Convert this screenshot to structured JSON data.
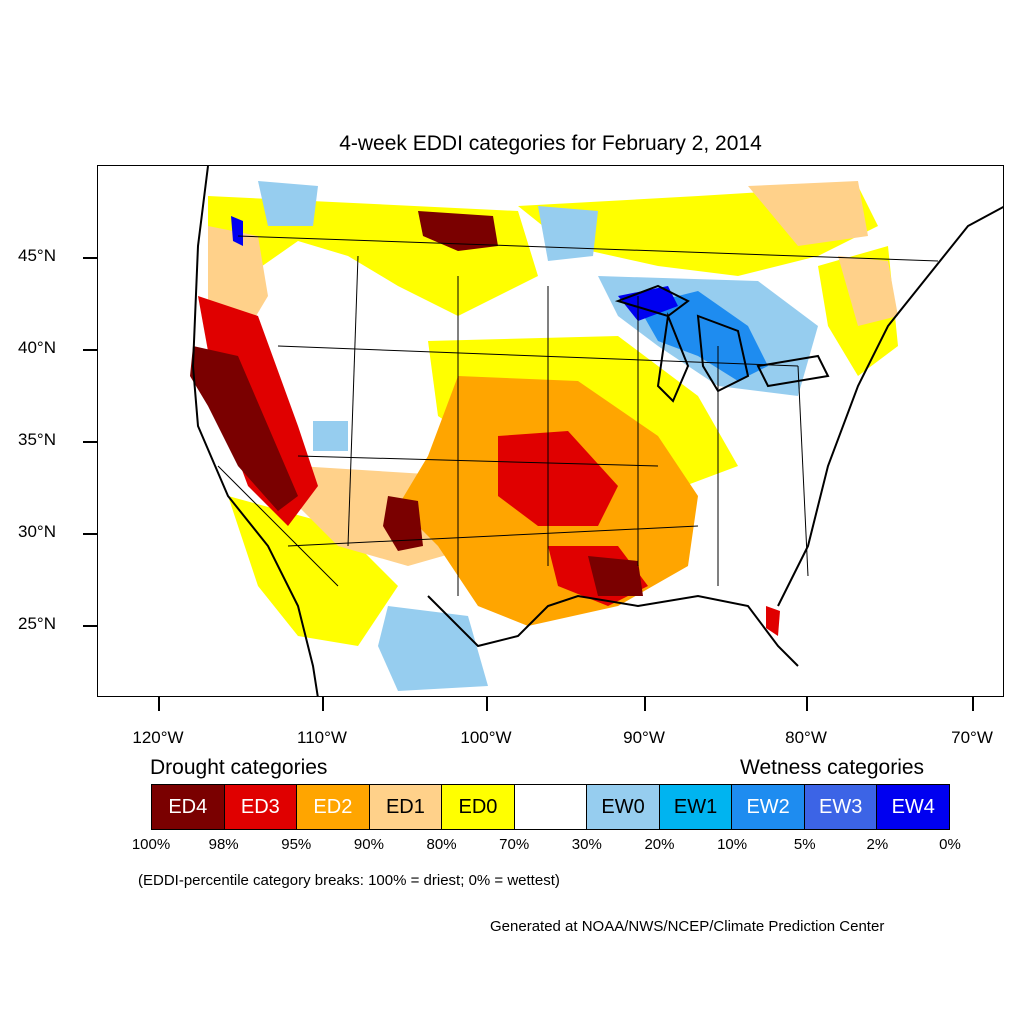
{
  "title": "4-week EDDI categories for February 2, 2014",
  "y_axis": {
    "labels": [
      "45°N",
      "40°N",
      "35°N",
      "30°N",
      "25°N"
    ]
  },
  "x_axis": {
    "labels": [
      "120°W",
      "110°W",
      "100°W",
      "90°W",
      "80°W",
      "70°W"
    ]
  },
  "legend": {
    "drought_title": "Drought categories",
    "wetness_title": "Wetness categories",
    "categories": [
      {
        "label": "ED4",
        "color": "#7a0000",
        "text_color": "#ffffff"
      },
      {
        "label": "ED3",
        "color": "#e00000",
        "text_color": "#ffffff"
      },
      {
        "label": "ED2",
        "color": "#ffa500",
        "text_color": "#ffffff"
      },
      {
        "label": "ED1",
        "color": "#ffd18a",
        "text_color": "#000000"
      },
      {
        "label": "ED0",
        "color": "#ffff00",
        "text_color": "#000000"
      },
      {
        "label": "",
        "color": "#ffffff",
        "text_color": "#000000"
      },
      {
        "label": "EW0",
        "color": "#96cdef",
        "text_color": "#000000"
      },
      {
        "label": "EW1",
        "color": "#00b4f0",
        "text_color": "#000000"
      },
      {
        "label": "EW2",
        "color": "#1e8cf0",
        "text_color": "#ffffff"
      },
      {
        "label": "EW3",
        "color": "#3c64e6",
        "text_color": "#ffffff"
      },
      {
        "label": "EW4",
        "color": "#0000f0",
        "text_color": "#ffffff"
      }
    ],
    "percentiles": [
      "100%",
      "98%",
      "95%",
      "90%",
      "80%",
      "70%",
      "30%",
      "20%",
      "10%",
      "5%",
      "2%",
      "0%"
    ]
  },
  "note": "(EDDI-percentile category breaks: 100% = driest; 0% = wettest)",
  "credit": "Generated at NOAA/NWS/NCEP/Climate Prediction Center"
}
